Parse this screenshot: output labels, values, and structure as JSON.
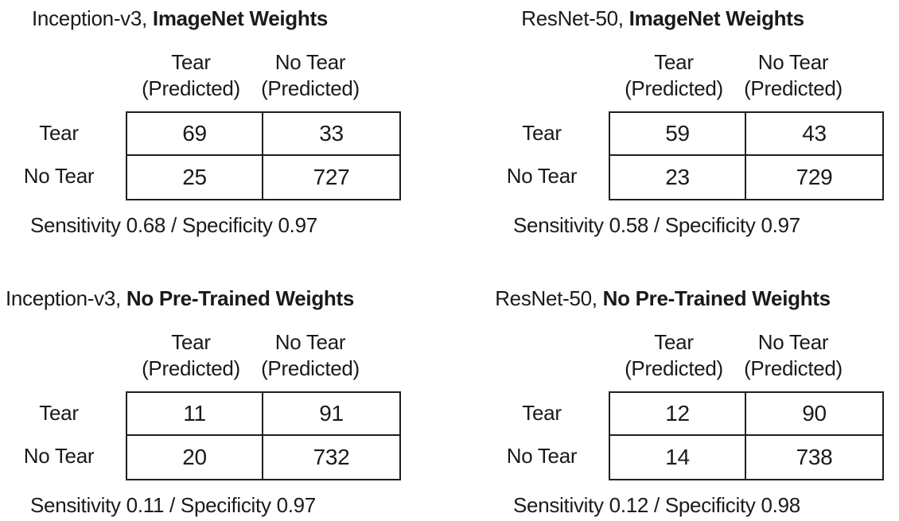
{
  "figure": {
    "background": "#ffffff",
    "text_color": "#1a1a1a",
    "border_color": "#1e1e1e"
  },
  "labels": {
    "col_tear": "Tear",
    "col_no_tear": "No Tear",
    "predicted": "(Predicted)",
    "row_tear": "Tear",
    "row_no_tear": "No Tear"
  },
  "chart_data": [
    {
      "type": "table",
      "subtype": "confusion-matrix",
      "title_model": "Inception-v3, ",
      "title_weights": "ImageNet Weights",
      "columns": [
        "Tear (Predicted)",
        "No Tear (Predicted)"
      ],
      "rows": [
        "Tear",
        "No Tear"
      ],
      "values": [
        [
          69,
          33
        ],
        [
          25,
          727
        ]
      ],
      "sensitivity": 0.68,
      "specificity": 0.97,
      "metrics_text": "Sensitivity 0.68 / Specificity 0.97"
    },
    {
      "type": "table",
      "subtype": "confusion-matrix",
      "title_model": "ResNet-50, ",
      "title_weights": "ImageNet Weights",
      "columns": [
        "Tear (Predicted)",
        "No Tear (Predicted)"
      ],
      "rows": [
        "Tear",
        "No Tear"
      ],
      "values": [
        [
          59,
          43
        ],
        [
          23,
          729
        ]
      ],
      "sensitivity": 0.58,
      "specificity": 0.97,
      "metrics_text": "Sensitivity 0.58 / Specificity 0.97"
    },
    {
      "type": "table",
      "subtype": "confusion-matrix",
      "title_model": "Inception-v3, ",
      "title_weights": "No Pre-Trained Weights",
      "columns": [
        "Tear (Predicted)",
        "No Tear (Predicted)"
      ],
      "rows": [
        "Tear",
        "No Tear"
      ],
      "values": [
        [
          11,
          91
        ],
        [
          20,
          732
        ]
      ],
      "sensitivity": 0.11,
      "specificity": 0.97,
      "metrics_text": "Sensitivity 0.11 / Specificity 0.97"
    },
    {
      "type": "table",
      "subtype": "confusion-matrix",
      "title_model": "ResNet-50, ",
      "title_weights": "No Pre-Trained Weights",
      "columns": [
        "Tear (Predicted)",
        "No Tear (Predicted)"
      ],
      "rows": [
        "Tear",
        "No Tear"
      ],
      "values": [
        [
          12,
          90
        ],
        [
          14,
          738
        ]
      ],
      "sensitivity": 0.12,
      "specificity": 0.98,
      "metrics_text": "Sensitivity 0.12 / Specificity 0.98"
    }
  ]
}
